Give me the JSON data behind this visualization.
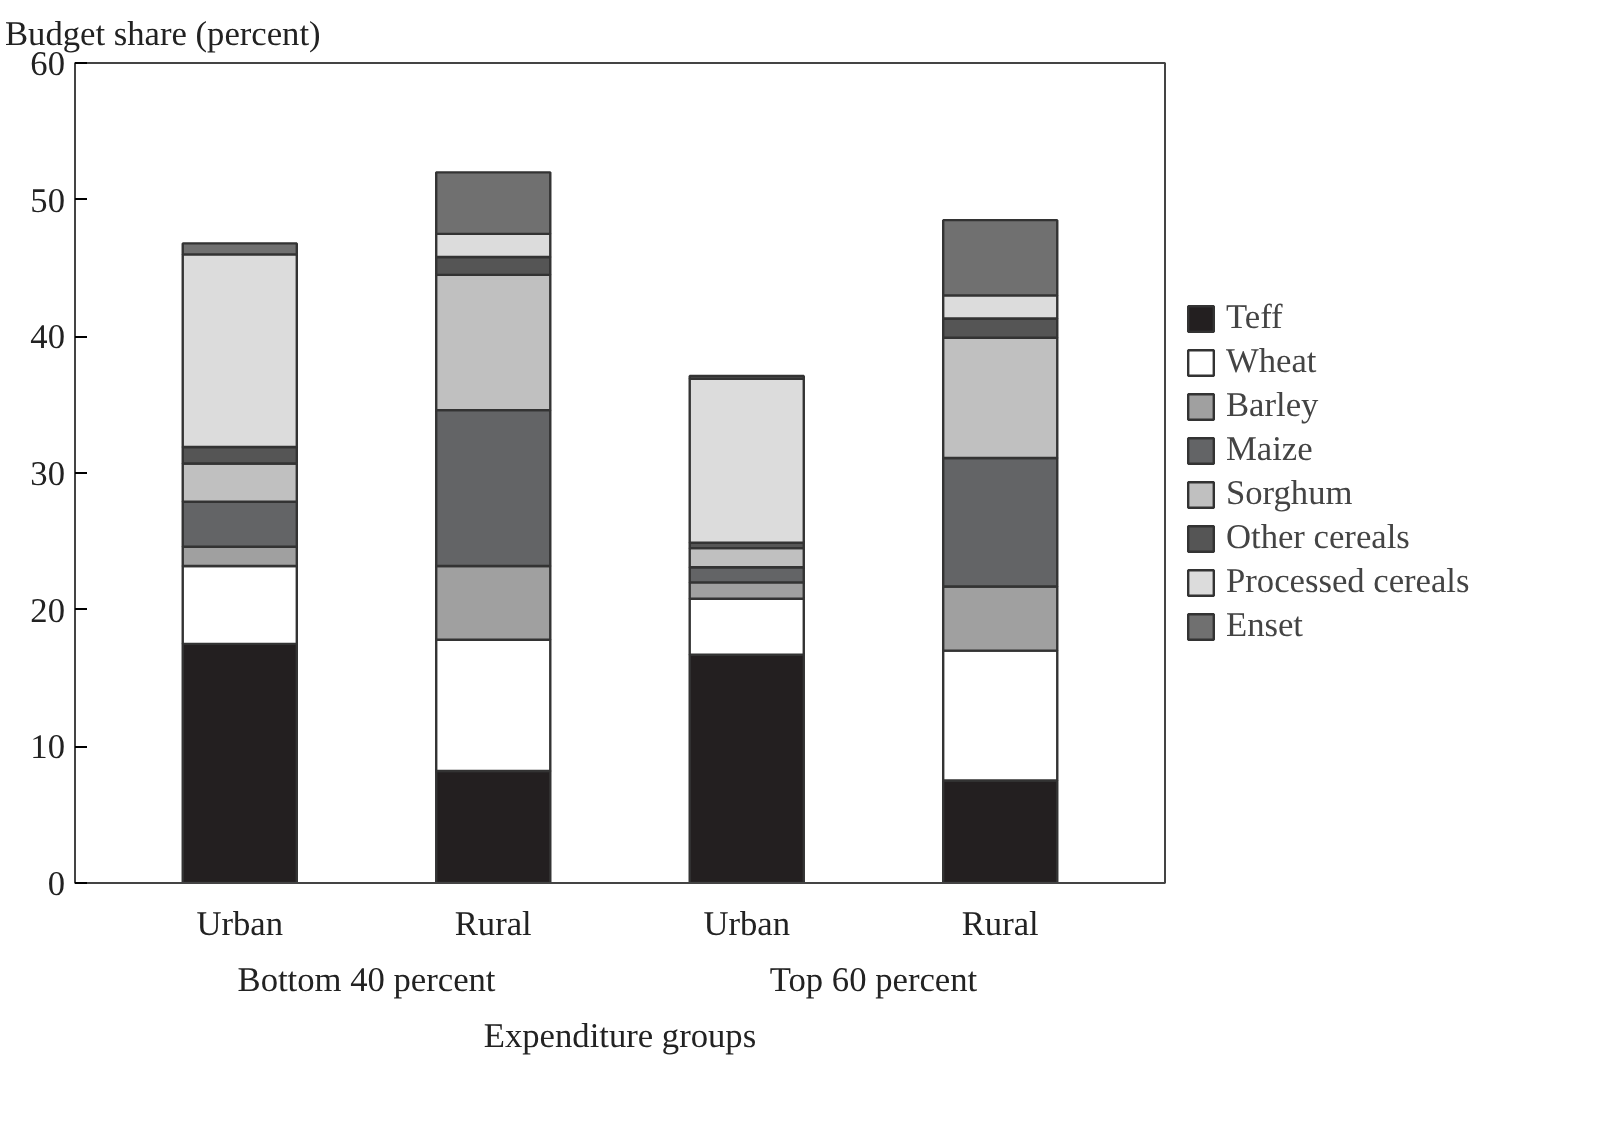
{
  "chart_data": {
    "type": "bar",
    "stacked": true,
    "ylabel": "Budget share (percent)",
    "xlabel": "Expenditure groups",
    "categories": [
      "Urban",
      "Rural",
      "Urban",
      "Rural"
    ],
    "annotations": [
      "Bottom 40 percent",
      "Top 60 percent"
    ],
    "ylim": [
      0,
      60
    ],
    "yticks": [
      0,
      10,
      20,
      30,
      40,
      50,
      60
    ],
    "legend": "right",
    "series": [
      {
        "name": "Teff",
        "color": "#231f20",
        "values": [
          17.5,
          8.2,
          16.7,
          7.5
        ]
      },
      {
        "name": "Wheat",
        "color": "#ffffff",
        "values": [
          5.7,
          9.6,
          4.1,
          9.5
        ]
      },
      {
        "name": "Barley",
        "color": "#a0a0a0",
        "values": [
          1.4,
          5.4,
          1.2,
          4.7
        ]
      },
      {
        "name": "Maize",
        "color": "#636466",
        "values": [
          3.3,
          11.4,
          1.1,
          9.4
        ]
      },
      {
        "name": "Sorghum",
        "color": "#c0c0c0",
        "values": [
          2.8,
          9.9,
          1.4,
          8.8
        ]
      },
      {
        "name": "Other cereals",
        "color": "#555555",
        "values": [
          1.2,
          1.3,
          0.4,
          1.4
        ]
      },
      {
        "name": "Processed cereals",
        "color": "#dcdcdc",
        "values": [
          14.1,
          1.7,
          12.0,
          1.7
        ]
      },
      {
        "name": "Enset",
        "color": "#707070",
        "values": [
          0.8,
          4.5,
          0.2,
          5.5
        ]
      }
    ]
  }
}
